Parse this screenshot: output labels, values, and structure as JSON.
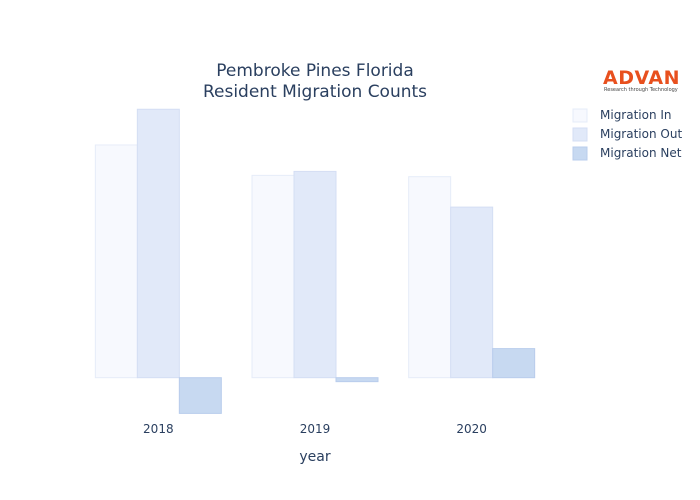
{
  "chart_data": {
    "type": "bar",
    "title": [
      "Pembroke Pines Florida",
      "Resident Migration Counts"
    ],
    "xlabel": "year",
    "ylabel": "",
    "categories": [
      "2018",
      "2019",
      "2020"
    ],
    "series": [
      {
        "name": "Migration In",
        "values": [
          8800,
          7650,
          7600
        ],
        "color": "#f7f9fe",
        "stroke": "#e6ecf8"
      },
      {
        "name": "Migration Out",
        "values": [
          10150,
          7800,
          6450
        ],
        "color": "#e1e9f9",
        "stroke": "#d4def4"
      },
      {
        "name": "Migration Net",
        "values": [
          -1350,
          -150,
          1100
        ],
        "color": "#c7d9f1",
        "stroke": "#b9cdec"
      }
    ],
    "ylim": [
      -1600,
      10500
    ],
    "grid": false,
    "legend_position": "top-right"
  },
  "logo": {
    "name": "ADVAN",
    "tagline": "Research through Technology"
  }
}
